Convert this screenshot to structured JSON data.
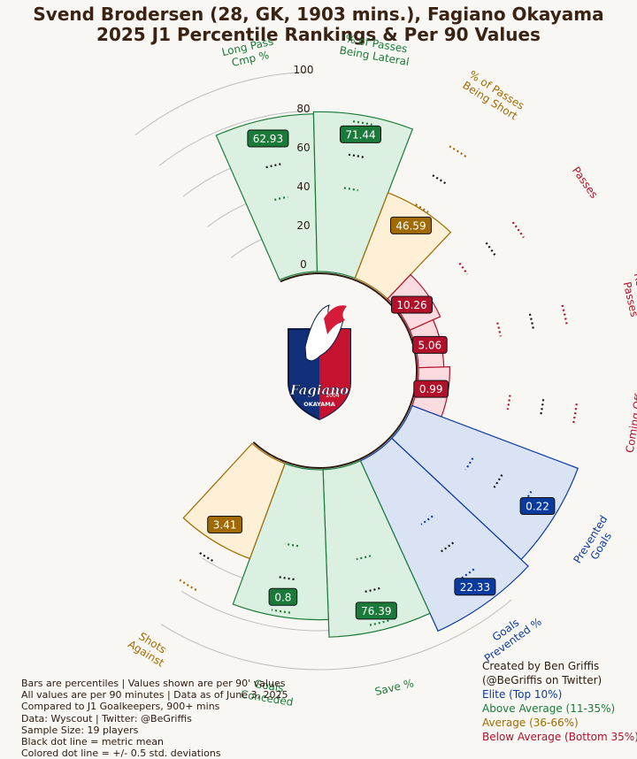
{
  "title_line1": "Svend Brodersen (28, GK, 1903 mins.), Fagiano Okayama",
  "title_line2": "2025 J1 Percentile Rankings & Per 90 Values",
  "colors": {
    "elite": "#0b3a9e",
    "above_average": "#1a7a3a",
    "average": "#a06a00",
    "below_average": "#b0102a",
    "background": "#f9f7f3"
  },
  "chart_data": {
    "type": "polar-bar",
    "radial_ticks": [
      "0",
      "20",
      "40",
      "60",
      "80",
      "100"
    ],
    "rlim": [
      0,
      100
    ],
    "metrics": [
      {
        "label": "Long Pass\nCmp %",
        "value": "62.93",
        "tier": "above_average",
        "percentile": 82
      },
      {
        "label": "% of Passes\nBeing Lateral",
        "value": "71.44",
        "tier": "above_average",
        "percentile": 83
      },
      {
        "label": "% of Passes\nBeing Short",
        "value": "46.59",
        "tier": "average",
        "percentile": 48
      },
      {
        "label": "Passes",
        "value": "10.26",
        "tier": "below_average",
        "percentile": 18
      },
      {
        "label": "Received\nPasses",
        "value": "5.06",
        "tier": "below_average",
        "percentile": 14
      },
      {
        "label": "Coming Off\nLine",
        "value": "0.99",
        "tier": "below_average",
        "percentile": 17
      },
      {
        "label": "Prevented\nGoals",
        "value": "0.22",
        "tier": "elite",
        "percentile": 92
      },
      {
        "label": "Goals\nPrevented %",
        "value": "22.33",
        "tier": "elite",
        "percentile": 97
      },
      {
        "label": "Save %",
        "value": "76.39",
        "tier": "above_average",
        "percentile": 87
      },
      {
        "label": "Goals\nConceded",
        "value": "0.8",
        "tier": "above_average",
        "percentile": 78
      },
      {
        "label": "Shots\nAgainst",
        "value": "3.41",
        "tier": "average",
        "percentile": 53
      }
    ]
  },
  "notes": [
    "Bars are percentiles | Values shown are per 90' values",
    "All values are per 90 minutes | Data as of June 3, 2025",
    "Compared to J1 Goalkeepers, 900+ mins",
    "Data: Wyscout | Twitter: @BeGriffis",
    "Sample Size: 19 players",
    "Black dot line = metric mean",
    "Colored dot line = +/- 0.5 std. deviations"
  ],
  "credit": {
    "line1": "Created by Ben Griffis",
    "line2": "(@BeGriffis on Twitter)"
  },
  "legend": {
    "elite": "Elite (Top 10%)",
    "above_average": "Above Average (11-35%)",
    "average": "Average (36-66%)",
    "below_average": "Below Average (Bottom 35%)"
  },
  "logo": {
    "name": "Fagiano",
    "city": "OKAYAMA",
    "year": "2004"
  }
}
